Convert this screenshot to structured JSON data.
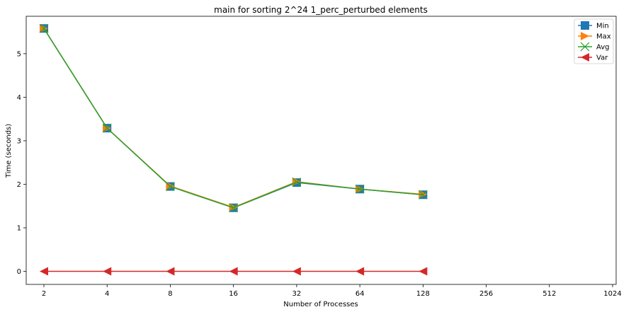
{
  "chart_data": {
    "type": "line",
    "title": "main for sorting 2^24 1_perc_perturbed elements",
    "xlabel": "Number of Processes",
    "ylabel": "Time (seconds)",
    "x_scale": "log2",
    "x_ticks": [
      2,
      4,
      8,
      16,
      32,
      64,
      128,
      256,
      512,
      1024
    ],
    "x_tick_labels": [
      "2",
      "4",
      "8",
      "16",
      "32",
      "64",
      "128",
      "256",
      "512",
      "1024"
    ],
    "xlim": [
      2,
      1024
    ],
    "y_ticks": [
      0,
      1,
      2,
      3,
      4,
      5
    ],
    "y_tick_labels": [
      "0",
      "1",
      "2",
      "3",
      "4",
      "5"
    ],
    "ylim": [
      -0.3,
      5.86
    ],
    "grid": false,
    "legend_position": "top-right",
    "x": [
      2,
      4,
      8,
      16,
      32,
      64,
      128
    ],
    "series": [
      {
        "name": "Min",
        "color": "#1f77b4",
        "marker": "square",
        "values": [
          5.58,
          3.29,
          1.95,
          1.46,
          2.04,
          1.89,
          1.76
        ]
      },
      {
        "name": "Max",
        "color": "#ff7f0e",
        "marker": "triangle-right",
        "values": [
          5.58,
          3.29,
          1.96,
          1.47,
          2.06,
          1.89,
          1.77
        ]
      },
      {
        "name": "Avg",
        "color": "#2ca02c",
        "marker": "x",
        "values": [
          5.58,
          3.29,
          1.95,
          1.46,
          2.05,
          1.89,
          1.76
        ]
      },
      {
        "name": "Var",
        "color": "#d62728",
        "marker": "triangle-left",
        "values": [
          0.0,
          0.0,
          0.0,
          0.0,
          0.0,
          0.0,
          0.0
        ]
      }
    ]
  }
}
